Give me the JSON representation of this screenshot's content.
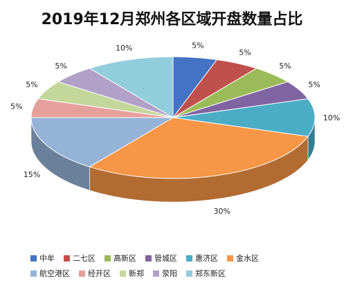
{
  "chart_data": {
    "type": "pie",
    "title": "2019年12月郑州各区域开盘数量占比",
    "categories": [
      "中牟",
      "二七区",
      "高新区",
      "管城区",
      "惠济区",
      "金水区",
      "航空港区",
      "经开区",
      "新郑",
      "荥阳",
      "郑东新区"
    ],
    "values": [
      5,
      5,
      5,
      5,
      10,
      30,
      15,
      5,
      5,
      5,
      10
    ],
    "labels": [
      "5%",
      "5%",
      "5%",
      "5%",
      "10%",
      "30%",
      "15%",
      "5%",
      "5%",
      "5%",
      "10%"
    ],
    "colors": [
      "#4472c4",
      "#c0504d",
      "#9bbb59",
      "#8064a2",
      "#4bacc6",
      "#f79646",
      "#95b3d7",
      "#e6a09c",
      "#c4d79b",
      "#b1a0c7",
      "#92cddc"
    ],
    "legend_position": "bottom"
  }
}
